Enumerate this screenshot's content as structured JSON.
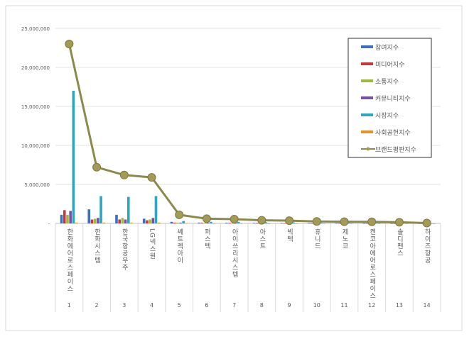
{
  "chart_data": {
    "type": "bar",
    "title": "",
    "xlabel": "",
    "ylabel": "",
    "ylim": [
      0,
      25000000
    ],
    "yticks": [
      "-",
      "5,000,000",
      "10,000,000",
      "15,000,000",
      "20,000,000",
      "25,000,000"
    ],
    "grid": true,
    "legend_position": "top-right",
    "categories": [
      "한화에어로스페이스",
      "한화시스템",
      "한국항공우주",
      "LG넥스원",
      "쎄트렉아이",
      "퍼스텍",
      "아이쓰리시스템",
      "아스트",
      "빅텍",
      "휴니드",
      "제노코",
      "켄코아에어로스페이스",
      "솔디펜스",
      "하이즈항공"
    ],
    "ranks": [
      "1",
      "2",
      "3",
      "4",
      "5",
      "6",
      "7",
      "8",
      "9",
      "10",
      "11",
      "12",
      "13",
      "14"
    ],
    "series": [
      {
        "name": "참여지수",
        "type": "bar",
        "color": "#3a6fc4",
        "values": [
          1100000,
          1800000,
          1100000,
          600000,
          200000,
          100000,
          80000,
          60000,
          50000,
          40000,
          30000,
          30000,
          20000,
          10000
        ]
      },
      {
        "name": "미디어지수",
        "type": "bar",
        "color": "#c9373a",
        "values": [
          1700000,
          500000,
          500000,
          400000,
          100000,
          80000,
          60000,
          40000,
          40000,
          30000,
          30000,
          30000,
          20000,
          10000
        ]
      },
      {
        "name": "소통지수",
        "type": "bar",
        "color": "#9bbb3b",
        "values": [
          1100000,
          600000,
          700000,
          500000,
          100000,
          50000,
          40000,
          30000,
          30000,
          20000,
          20000,
          20000,
          10000,
          10000
        ]
      },
      {
        "name": "커뮤니티지수",
        "type": "bar",
        "color": "#7a4fa6",
        "values": [
          1600000,
          700000,
          500000,
          700000,
          100000,
          50000,
          40000,
          30000,
          30000,
          20000,
          20000,
          20000,
          10000,
          10000
        ]
      },
      {
        "name": "시장지수",
        "type": "bar",
        "color": "#2fa6c0",
        "values": [
          17000000,
          3500000,
          3400000,
          3500000,
          300000,
          200000,
          200000,
          150000,
          120000,
          100000,
          90000,
          80000,
          60000,
          20000
        ]
      },
      {
        "name": "사회공헌지수",
        "type": "bar",
        "color": "#e8912c",
        "values": [
          100000,
          100000,
          100000,
          100000,
          50000,
          20000,
          20000,
          10000,
          10000,
          10000,
          10000,
          10000,
          10000,
          5000
        ]
      },
      {
        "name": "브랜드평판지수",
        "type": "line",
        "color": "#8c8a4a",
        "values": [
          23000000,
          7200000,
          6200000,
          5900000,
          1100000,
          600000,
          550000,
          400000,
          350000,
          250000,
          220000,
          200000,
          150000,
          50000
        ]
      }
    ]
  }
}
